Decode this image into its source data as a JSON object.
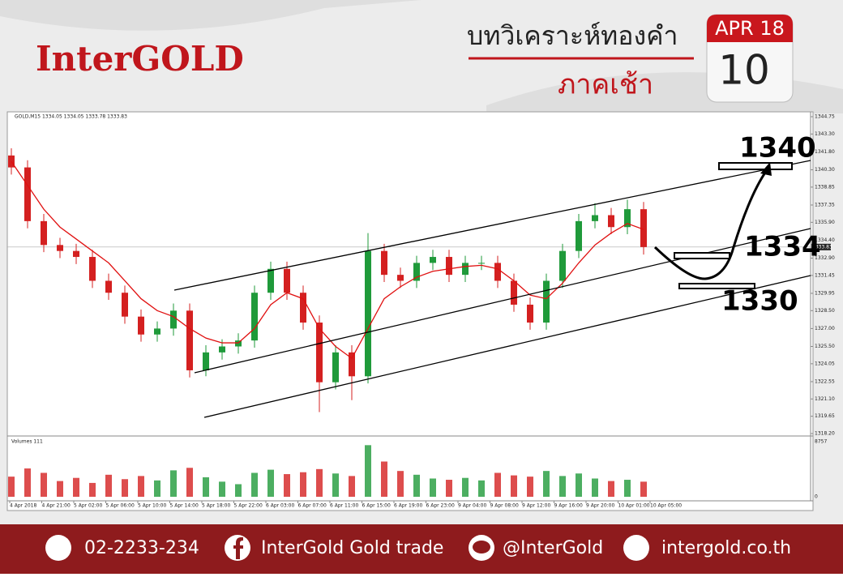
{
  "header": {
    "brand": "InterGOLD",
    "title": "บทวิเคราะห์ทองคำ",
    "subtitle": "ภาคเช้า",
    "calendar_month": "APR 18",
    "calendar_day": "10"
  },
  "chart_data": {
    "type": "candlestick",
    "title": "GOLD,M15 1334.05 1334.05 1333.78 1333.83",
    "open": [
      1341.5,
      1340.5,
      1336,
      1334,
      1333.5,
      1333,
      1331,
      1330,
      1328,
      1326.5,
      1327,
      1328.5,
      1323.5,
      1325,
      1325.5,
      1326,
      1330,
      1332,
      1330,
      1327.5,
      1322.5,
      1325,
      1323,
      1333.5,
      1331.5,
      1331,
      1332.5,
      1333,
      1331.5,
      1332.5,
      1332.5,
      1331,
      1329,
      1327.5,
      1331,
      1333.5,
      1336,
      1336.5,
      1335.5,
      1337
    ],
    "high": [
      1342.1,
      1341.1,
      1336.6,
      1334.6,
      1334.1,
      1333.6,
      1331.6,
      1330.6,
      1328.6,
      1327.6,
      1329.1,
      1329.1,
      1325.6,
      1326.1,
      1326.6,
      1330.6,
      1332.6,
      1332.6,
      1330.6,
      1328.1,
      1325.6,
      1325.6,
      1335,
      1334.1,
      1332.1,
      1333.1,
      1333.6,
      1333.6,
      1333.1,
      1333.1,
      1333.1,
      1331.6,
      1329.6,
      1331.6,
      1334.1,
      1336.6,
      1337.5,
      1337.1,
      1337.8,
      1337.6
    ],
    "low": [
      1339.9,
      1335.4,
      1333.4,
      1332.9,
      1332.4,
      1330.4,
      1329.4,
      1327.4,
      1325.9,
      1325.9,
      1326.4,
      1322.9,
      1323,
      1324.4,
      1324.9,
      1325.4,
      1329.4,
      1329.4,
      1326.9,
      1320,
      1321.9,
      1321,
      1322.4,
      1330.9,
      1330.4,
      1330.4,
      1331.9,
      1330.9,
      1330.9,
      1331.9,
      1330.4,
      1328.4,
      1326.9,
      1326.9,
      1330.4,
      1332.9,
      1335.4,
      1334.9,
      1334.9,
      1333.2
    ],
    "close": [
      1340.5,
      1336,
      1334,
      1333.5,
      1333,
      1331,
      1330,
      1328,
      1326.5,
      1327,
      1328.5,
      1323.5,
      1325,
      1325.5,
      1326,
      1330,
      1332,
      1330,
      1327.5,
      1322.5,
      1325,
      1323,
      1333.5,
      1331.5,
      1331,
      1332.5,
      1333,
      1331.5,
      1332.5,
      1332.5,
      1331,
      1329,
      1327.5,
      1331,
      1333.5,
      1336,
      1336.5,
      1335.5,
      1337,
      1333.83
    ],
    "ma": [
      1341,
      1339,
      1337,
      1335.5,
      1334.5,
      1333.5,
      1332.5,
      1331,
      1329.5,
      1328.5,
      1328,
      1327,
      1326.2,
      1325.8,
      1325.8,
      1327,
      1329,
      1330,
      1329.5,
      1327,
      1325.5,
      1324.5,
      1327,
      1329.5,
      1330.5,
      1331.3,
      1331.8,
      1332,
      1332.2,
      1332.3,
      1332,
      1331,
      1329.8,
      1329.5,
      1330.8,
      1332.5,
      1334,
      1335,
      1335.8,
      1335.3
    ],
    "up_color": "#1f9a3a",
    "down_color": "#d42020",
    "ma_color": "#e01010",
    "last_price_label": "1333.83",
    "ylim": [
      1318.2,
      1344.75
    ],
    "yticks": [
      {
        "value": 1344.75,
        "label": "1344.75"
      },
      {
        "value": 1343.3,
        "label": "1343.30"
      },
      {
        "value": 1341.8,
        "label": "1341.80"
      },
      {
        "value": 1340.3,
        "label": "1340.30"
      },
      {
        "value": 1338.85,
        "label": "1338.85"
      },
      {
        "value": 1337.35,
        "label": "1337.35"
      },
      {
        "value": 1335.9,
        "label": "1335.90"
      },
      {
        "value": 1334.4,
        "label": "1334.40"
      },
      {
        "value": 1332.9,
        "label": "1332.90"
      },
      {
        "value": 1331.45,
        "label": "1331.45"
      },
      {
        "value": 1329.95,
        "label": "1329.95"
      },
      {
        "value": 1328.5,
        "label": "1328.50"
      },
      {
        "value": 1327,
        "label": "1327.00"
      },
      {
        "value": 1325.5,
        "label": "1325.50"
      },
      {
        "value": 1324.05,
        "label": "1324.05"
      },
      {
        "value": 1322.55,
        "label": "1322.55"
      },
      {
        "value": 1321.1,
        "label": "1321.10"
      },
      {
        "value": 1319.65,
        "label": "1319.65"
      },
      {
        "value": 1318.2,
        "label": "1318.20"
      }
    ],
    "time_labels": [
      "4 Apr 2018",
      "4 Apr 21:00",
      "5 Apr 02:00",
      "5 Apr 06:00",
      "5 Apr 10:00",
      "5 Apr 14:00",
      "5 Apr 18:00",
      "5 Apr 22:00",
      "6 Apr 03:00",
      "6 Apr 07:00",
      "6 Apr 11:00",
      "6 Apr 15:00",
      "6 Apr 19:00",
      "6 Apr 23:00",
      "9 Apr 04:00",
      "9 Apr 08:00",
      "9 Apr 12:00",
      "9 Apr 16:00",
      "9 Apr 20:00",
      "10 Apr 01:00",
      "10 Apr 05:00"
    ],
    "annotations": [
      "1340",
      "1334",
      "1330"
    ],
    "volume": {
      "label": "Volumes 111",
      "values": [
        3200,
        4500,
        3800,
        2500,
        3000,
        2200,
        3500,
        2800,
        3300,
        2600,
        4200,
        4600,
        3100,
        2400,
        2000,
        3800,
        4300,
        3600,
        3900,
        4400,
        3700,
        3300,
        8200,
        5600,
        4100,
        3500,
        2900,
        2700,
        3000,
        2600,
        3800,
        3400,
        3200,
        4100,
        3300,
        3700,
        2900,
        2500,
        2700,
        2400
      ],
      "ylim": [
        0,
        8757
      ],
      "yticks": [
        8757,
        0
      ]
    }
  },
  "footer": {
    "phone": "02-2233-234",
    "facebook": "InterGold Gold trade",
    "line": "@InterGold",
    "website": "intergold.co.th"
  }
}
